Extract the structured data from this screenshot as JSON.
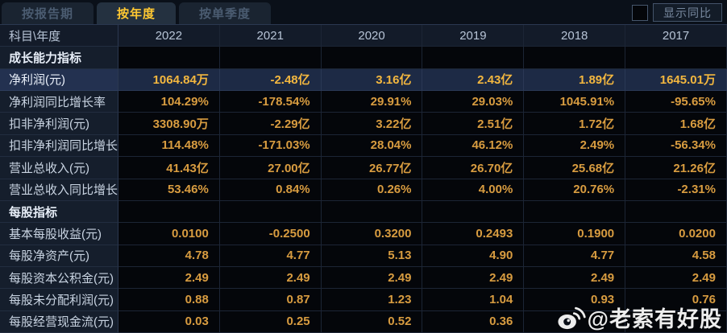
{
  "tabs": [
    {
      "label": "按报告期",
      "active": false
    },
    {
      "label": "按年度",
      "active": true
    },
    {
      "label": "按单季度",
      "active": false
    }
  ],
  "controls": {
    "show_yoy_label": "显示同比",
    "checkbox_checked": false
  },
  "table": {
    "corner_header": "科目\\年度",
    "years": [
      "2022",
      "2021",
      "2020",
      "2019",
      "2018",
      "2017"
    ],
    "more_icon": "»",
    "rows": [
      {
        "type": "section",
        "label": "成长能力指标",
        "values": [
          "",
          "",
          "",
          "",
          "",
          ""
        ]
      },
      {
        "type": "data",
        "label": "净利润(元)",
        "highlighted": true,
        "values": [
          "1064.84万",
          "-2.48亿",
          "3.16亿",
          "2.43亿",
          "1.89亿",
          "1645.01万"
        ]
      },
      {
        "type": "data",
        "label": "净利润同比增长率",
        "values": [
          "104.29%",
          "-178.54%",
          "29.91%",
          "29.03%",
          "1045.91%",
          "-95.65%"
        ]
      },
      {
        "type": "data",
        "label": "扣非净利润(元)",
        "values": [
          "3308.90万",
          "-2.29亿",
          "3.22亿",
          "2.51亿",
          "1.72亿",
          "1.68亿"
        ]
      },
      {
        "type": "data",
        "label": "扣非净利润同比增长率",
        "values": [
          "114.48%",
          "-171.03%",
          "28.04%",
          "46.12%",
          "2.49%",
          "-56.34%"
        ]
      },
      {
        "type": "data",
        "label": "营业总收入(元)",
        "values": [
          "41.43亿",
          "27.00亿",
          "26.77亿",
          "26.70亿",
          "25.68亿",
          "21.26亿"
        ]
      },
      {
        "type": "data",
        "label": "营业总收入同比增长率",
        "values": [
          "53.46%",
          "0.84%",
          "0.26%",
          "4.00%",
          "20.76%",
          "-2.31%"
        ]
      },
      {
        "type": "section",
        "label": "每股指标",
        "values": [
          "",
          "",
          "",
          "",
          "",
          ""
        ]
      },
      {
        "type": "data",
        "label": "基本每股收益(元)",
        "values": [
          "0.0100",
          "-0.2500",
          "0.3200",
          "0.2493",
          "0.1900",
          "0.0200"
        ]
      },
      {
        "type": "data",
        "label": "每股净资产(元)",
        "values": [
          "4.78",
          "4.77",
          "5.13",
          "4.90",
          "4.77",
          "4.58"
        ]
      },
      {
        "type": "data",
        "label": "每股资本公积金(元)",
        "values": [
          "2.49",
          "2.49",
          "2.49",
          "2.49",
          "2.49",
          "2.49"
        ]
      },
      {
        "type": "data",
        "label": "每股未分配利润(元)",
        "values": [
          "0.88",
          "0.87",
          "1.23",
          "1.04",
          "0.93",
          "0.76"
        ]
      },
      {
        "type": "data",
        "label": "每股经营现金流(元)",
        "values": [
          "0.03",
          "0.25",
          "0.52",
          "0.36",
          "",
          ""
        ]
      }
    ]
  },
  "watermark": {
    "handle": "@老索有好股"
  },
  "colors": {
    "accent_gold": "#ffc832",
    "value_orange": "#d89c40",
    "highlight_row_bg": "#1d2a45",
    "label_cell_bg": "#151e2c",
    "value_cell_bg": "#04060a"
  }
}
